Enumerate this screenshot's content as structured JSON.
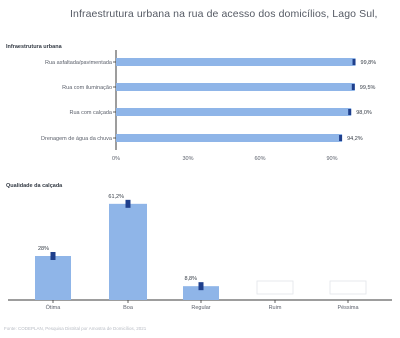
{
  "page": {
    "title": "Infraestrutura urbana na rua de acesso dos domicílios, Lago Sul,",
    "footer": "Fonte: CODEPLAN, Pesquisa Distrital por Amostra de Domicílios, 2021"
  },
  "colors": {
    "bar": "#8fb5e8",
    "bar_cap": "#1f3f8c",
    "axis": "#3b3b3b",
    "text": "#5a5f6a",
    "grid": "#eef0f4",
    "placeholder": "#e2e5ea"
  },
  "chart_data": [
    {
      "type": "bar",
      "orientation": "horizontal",
      "title": "Infraestrutura urbana",
      "categories": [
        "Rua asfaltada/pavimentada",
        "Rua com iluminação",
        "Rua com calçada",
        "Drenagem de água da chuva"
      ],
      "values": [
        99.8,
        99.5,
        98.0,
        94.2
      ],
      "value_labels": [
        "99,8%",
        "99,5%",
        "98,0%",
        "94,2%"
      ],
      "xlim": [
        0,
        100
      ],
      "ticks": [
        0,
        30,
        60,
        90
      ],
      "tick_labels": [
        "0%",
        "30%",
        "60%",
        "90%"
      ],
      "grid": false
    },
    {
      "type": "bar",
      "orientation": "vertical",
      "title": "Qualidade da calçada",
      "categories": [
        "Ótima",
        "Boa",
        "Regular",
        "Ruim",
        "Péssima"
      ],
      "values": [
        28.0,
        61.2,
        8.8,
        null,
        null
      ],
      "value_labels": [
        "28%",
        "61,2%",
        "8,8%",
        "",
        ""
      ],
      "placeholder_text": "",
      "ylim": [
        0,
        70
      ],
      "grid": false
    }
  ]
}
